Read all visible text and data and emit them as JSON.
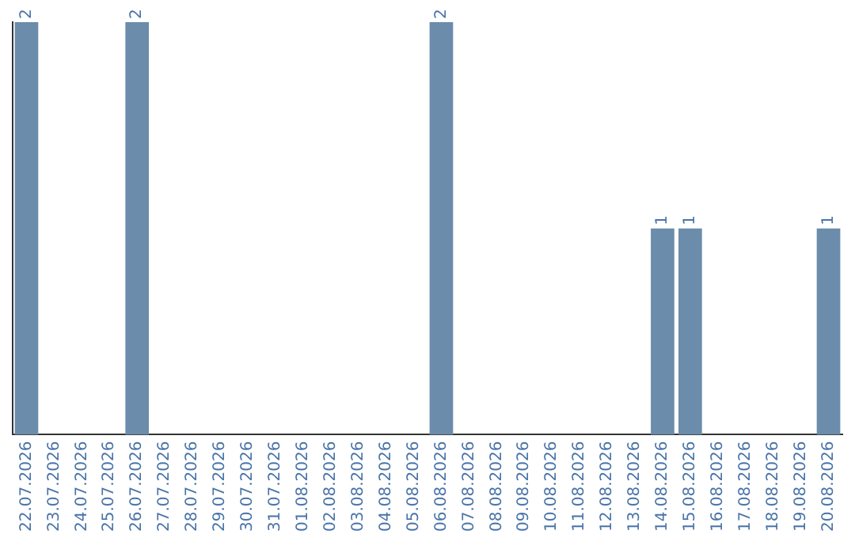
{
  "chart_data": {
    "type": "bar",
    "categories": [
      "22.07.2026",
      "23.07.2026",
      "24.07.2026",
      "25.07.2026",
      "26.07.2026",
      "27.07.2026",
      "28.07.2026",
      "29.07.2026",
      "30.07.2026",
      "31.07.2026",
      "01.08.2026",
      "02.08.2026",
      "03.08.2026",
      "04.08.2026",
      "05.08.2026",
      "06.08.2026",
      "07.08.2026",
      "08.08.2026",
      "09.08.2026",
      "10.08.2026",
      "11.08.2026",
      "12.08.2026",
      "13.08.2026",
      "14.08.2026",
      "15.08.2026",
      "16.08.2026",
      "17.08.2026",
      "18.08.2026",
      "19.08.2026",
      "20.08.2026"
    ],
    "values": [
      2,
      0,
      0,
      0,
      2,
      0,
      0,
      0,
      0,
      0,
      0,
      0,
      0,
      0,
      0,
      2,
      0,
      0,
      0,
      0,
      0,
      0,
      0,
      1,
      1,
      0,
      0,
      0,
      0,
      1
    ],
    "value_labels": [
      "2",
      null,
      null,
      null,
      "2",
      null,
      null,
      null,
      null,
      null,
      null,
      null,
      null,
      null,
      null,
      "2",
      null,
      null,
      null,
      null,
      null,
      null,
      null,
      "1",
      "1",
      null,
      null,
      null,
      null,
      "1"
    ],
    "color": "#6b8cab",
    "grid": false,
    "legend": false,
    "tick_labels": "x"
  }
}
